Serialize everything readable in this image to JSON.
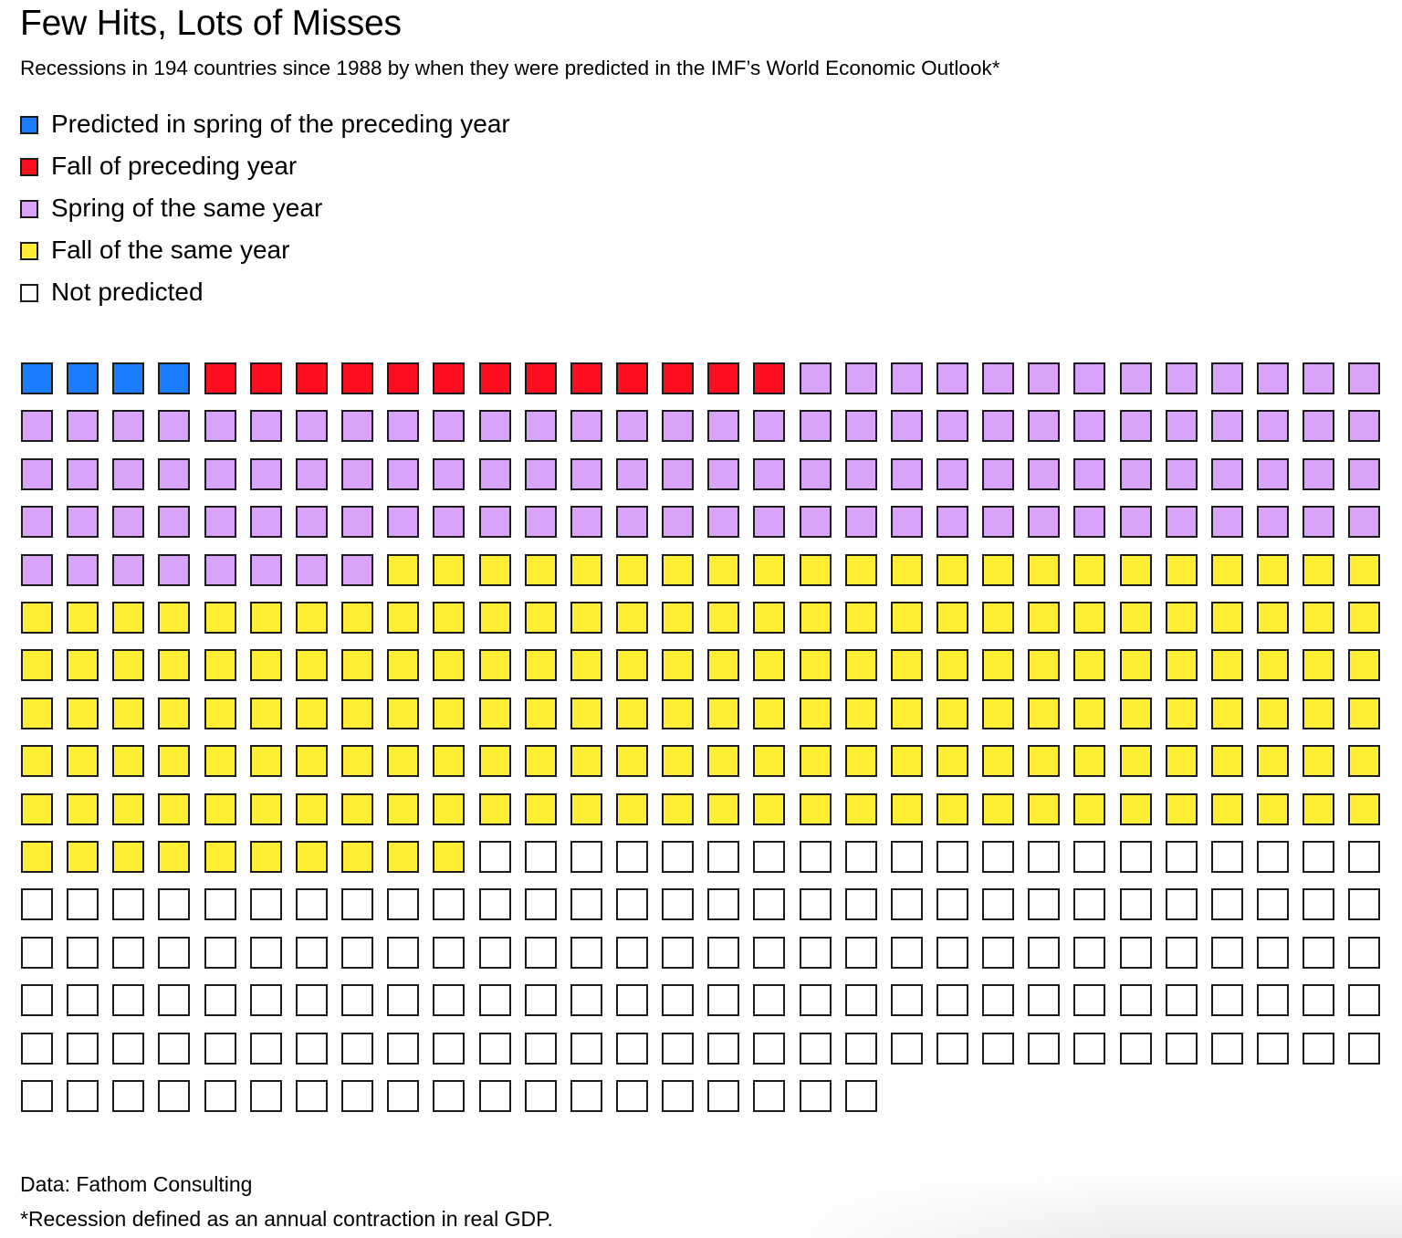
{
  "chart_data": {
    "type": "waffle",
    "title": "Few Hits, Lots of Misses",
    "subtitle": "Recessions in 194 countries since 1988 by when they were predicted in the IMF’s World Economic Outlook*",
    "columns": 30,
    "categories": [
      {
        "key": "spring_preceding",
        "label": "Predicted in spring of the preceding year",
        "color": "#1a7cff",
        "count": 4
      },
      {
        "key": "fall_preceding",
        "label": "Fall of preceding year",
        "color": "#ff0e20",
        "count": 13
      },
      {
        "key": "spring_same",
        "label": "Spring of the same year",
        "color": "#d9a3fb",
        "count": 111
      },
      {
        "key": "fall_same",
        "label": "Fall of the same year",
        "color": "#ffee33",
        "count": 182
      },
      {
        "key": "not_predicted",
        "label": "Not predicted",
        "color": "#ffffff",
        "count": 159
      }
    ],
    "total": 469,
    "legend_position": "top-left",
    "source": "Data: Fathom Consulting",
    "note": "*Recession defined as an annual contraction in real GDP."
  },
  "colors": {
    "border": "#1c1c1c",
    "text": "#000000",
    "background": "#ffffff"
  }
}
